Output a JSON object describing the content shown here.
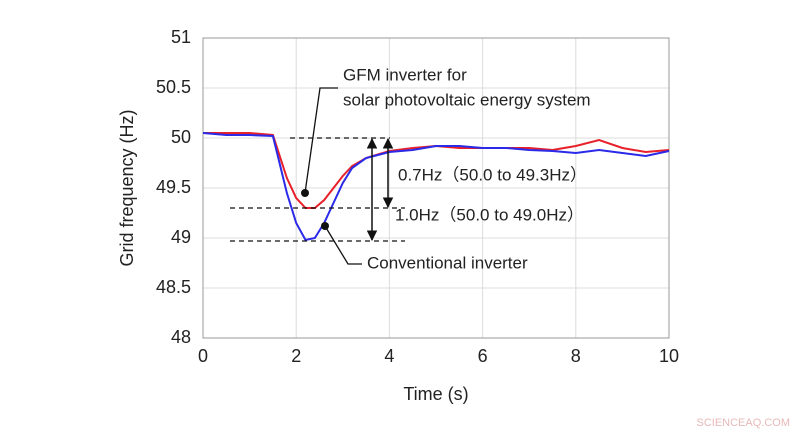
{
  "chart_data": {
    "type": "line",
    "x_label": "Time (s)",
    "y_label": "Grid frequency (Hz)",
    "xlim": [
      0,
      10
    ],
    "xticks": [
      0,
      2,
      4,
      6,
      8,
      10
    ],
    "ylim": [
      48,
      51
    ],
    "yticks": [
      48,
      48.5,
      49,
      49.5,
      50,
      50.5,
      51
    ],
    "grid": true,
    "x": [
      0,
      0.5,
      1,
      1.5,
      1.8,
      2,
      2.2,
      2.4,
      2.6,
      2.8,
      3,
      3.2,
      3.5,
      4,
      4.5,
      5,
      5.5,
      6,
      6.5,
      7,
      7.5,
      8,
      8.5,
      9,
      9.5,
      10
    ],
    "series": [
      {
        "name": "GFM inverter for solar photovoltaic energy system",
        "color": "#e8202a",
        "values": [
          50.05,
          50.05,
          50.05,
          50.03,
          49.6,
          49.4,
          49.3,
          49.3,
          49.38,
          49.5,
          49.62,
          49.72,
          49.8,
          49.87,
          49.9,
          49.92,
          49.9,
          49.9,
          49.9,
          49.9,
          49.88,
          49.92,
          49.98,
          49.9,
          49.86,
          49.88
        ]
      },
      {
        "name": "Conventional inverter",
        "color": "#2a2ae8",
        "values": [
          50.05,
          50.03,
          50.03,
          50.02,
          49.45,
          49.15,
          48.98,
          49.0,
          49.15,
          49.35,
          49.55,
          49.7,
          49.8,
          49.86,
          49.88,
          49.92,
          49.92,
          49.9,
          49.9,
          49.88,
          49.87,
          49.85,
          49.88,
          49.85,
          49.82,
          49.87
        ]
      }
    ],
    "reference_levels": [
      50.0,
      49.3,
      48.97
    ],
    "annotations": [
      "GFM inverter for",
      "solar photovoltaic energy system",
      "0.7Hz（50.0 to 49.3Hz）",
      "1.0Hz（50.0 to 49.0Hz）",
      "Conventional inverter"
    ],
    "watermark": "SCIENCEAQ.COM"
  }
}
